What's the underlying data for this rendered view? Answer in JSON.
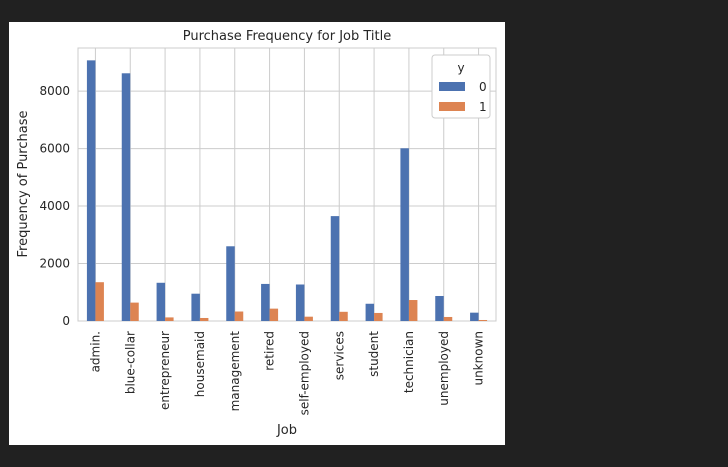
{
  "chart_data": {
    "type": "bar",
    "title": "Purchase Frequency for Job Title",
    "xlabel": "Job",
    "ylabel": "Frequency of Purchase",
    "categories": [
      "admin.",
      "blue-collar",
      "entrepreneur",
      "housemaid",
      "management",
      "retired",
      "self-employed",
      "services",
      "student",
      "technician",
      "unemployed",
      "unknown"
    ],
    "series": [
      {
        "name": "0",
        "color": "#4c72b0",
        "values": [
          9070,
          8620,
          1330,
          950,
          2600,
          1290,
          1270,
          3650,
          600,
          6010,
          870,
          290
        ]
      },
      {
        "name": "1",
        "color": "#dd8452",
        "values": [
          1350,
          640,
          125,
          105,
          330,
          430,
          150,
          320,
          280,
          730,
          140,
          35
        ]
      }
    ],
    "ylim": [
      0,
      9500
    ],
    "yticks": [
      0,
      2000,
      4000,
      6000,
      8000
    ],
    "legend": {
      "title": "y",
      "position": "top-right"
    },
    "grid": true
  }
}
